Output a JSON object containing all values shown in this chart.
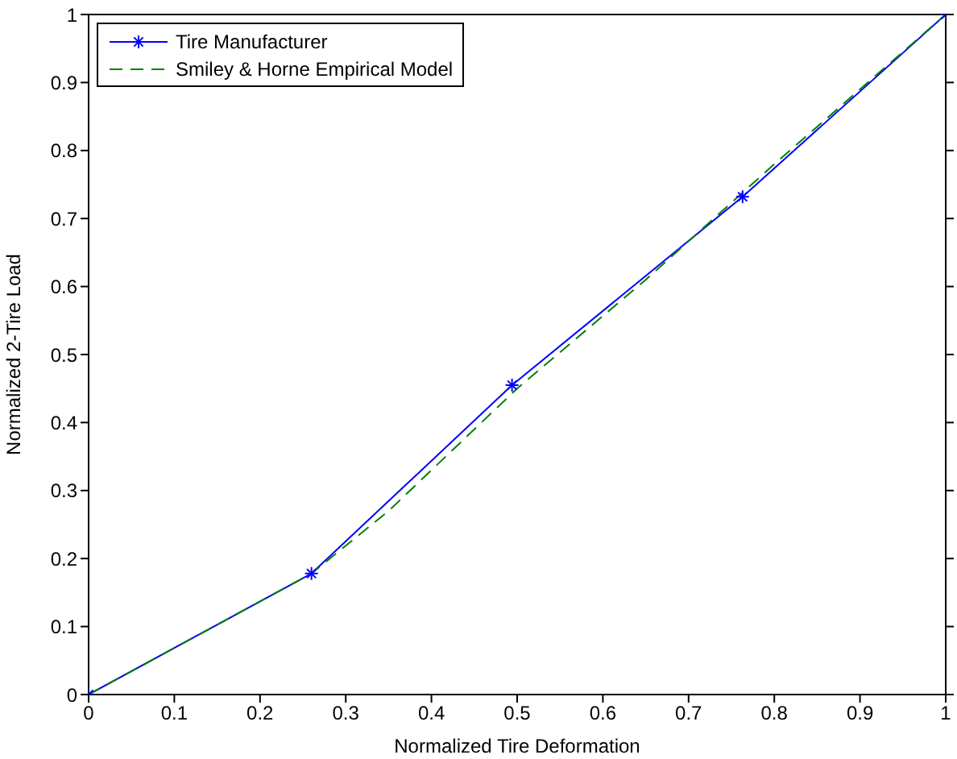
{
  "chart_data": {
    "type": "line",
    "xlabel": "Normalized Tire Deformation",
    "ylabel": "Normalized 2-Tire Load",
    "xlim": [
      0,
      1
    ],
    "ylim": [
      0,
      1
    ],
    "xticks": [
      0,
      0.1,
      0.2,
      0.3,
      0.4,
      0.5,
      0.6,
      0.7,
      0.8,
      0.9,
      1
    ],
    "yticks": [
      0,
      0.1,
      0.2,
      0.3,
      0.4,
      0.5,
      0.6,
      0.7,
      0.8,
      0.9,
      1
    ],
    "legend": "top left",
    "series": [
      {
        "name": "Tire Manufacturer",
        "color": "#0000ff",
        "marker": "cross",
        "line_style": "solid",
        "x": [
          0,
          0.26,
          0.494,
          0.763,
          1
        ],
        "values": [
          0,
          0.178,
          0.455,
          0.732,
          1
        ]
      },
      {
        "name": "Smiley & Horne Empirical Model",
        "color": "#008000",
        "marker": "none",
        "line_style": "dashed",
        "x": [
          0,
          0.26,
          0.35,
          0.5,
          0.65,
          0.8,
          0.9,
          1
        ],
        "values": [
          0,
          0.178,
          0.27,
          0.45,
          0.61,
          0.78,
          0.89,
          1
        ]
      }
    ]
  }
}
